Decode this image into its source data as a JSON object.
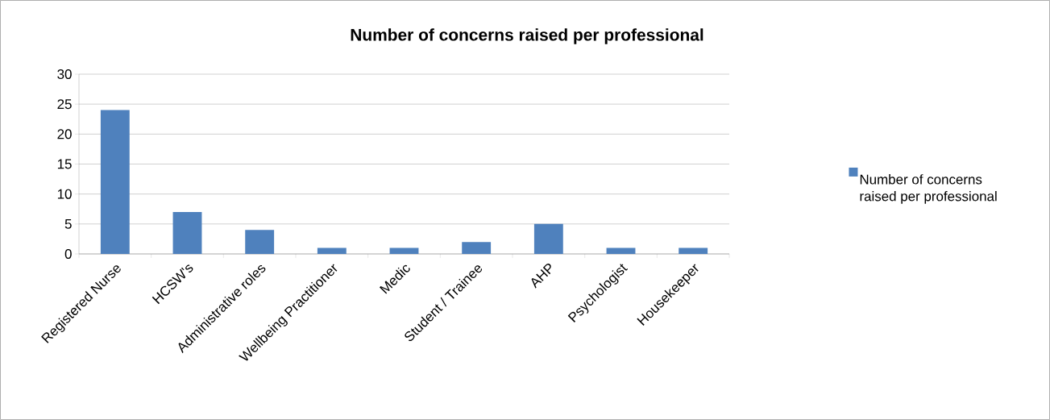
{
  "chart_data": {
    "type": "bar",
    "title": "Number of concerns raised per professional",
    "categories": [
      "Registered Nurse",
      "HCSW's",
      "Administrative roles",
      "Wellbeing Practitioner",
      "Medic",
      "Student / Trainee",
      "AHP",
      "Psychologist",
      "Housekeeper"
    ],
    "series": [
      {
        "name": "Number of concerns raised per professional",
        "color": "#4f81bd",
        "values": [
          24,
          7,
          4,
          1,
          1,
          2,
          5,
          1,
          1
        ]
      }
    ],
    "ylim": [
      0,
      30
    ],
    "yticks": [
      0,
      5,
      10,
      15,
      20,
      25,
      30
    ],
    "grid": "y",
    "legend": "right"
  }
}
